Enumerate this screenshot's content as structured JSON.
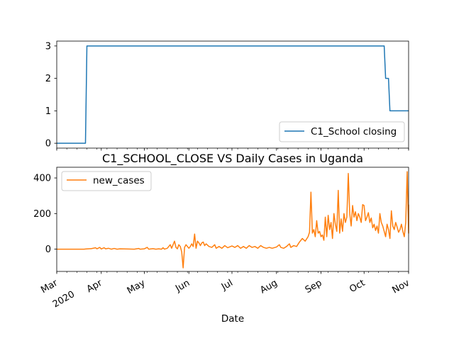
{
  "chart_data": [
    {
      "type": "line",
      "title": "",
      "xlabel": "",
      "ylabel": "",
      "ylim": [
        -0.15,
        3.15
      ],
      "yticks": [
        0,
        1,
        2,
        3
      ],
      "grid": false,
      "legend_placement": "lower-right",
      "series": [
        {
          "name": "C1_School closing",
          "color": "#1f77b4",
          "points": [
            [
              "2020-03-01",
              0
            ],
            [
              "2020-03-21",
              0
            ],
            [
              "2020-03-22",
              3
            ],
            [
              "2020-10-15",
              3
            ],
            [
              "2020-10-16",
              2
            ],
            [
              "2020-10-18",
              2
            ],
            [
              "2020-10-19",
              1
            ],
            [
              "2020-11-01",
              1
            ]
          ]
        }
      ]
    },
    {
      "type": "line",
      "title": "C1_SCHOOL_CLOSE VS Daily Cases in Uganda",
      "xlabel": "Date",
      "ylabel": "",
      "ylim": [
        -125,
        460
      ],
      "yticks": [
        0,
        200,
        400
      ],
      "grid": false,
      "legend_placement": "upper-left",
      "x_tick_labels": [
        {
          "date": "2020-03-01",
          "label": "Mar",
          "sublabel": "2020"
        },
        {
          "date": "2020-04-01",
          "label": "Apr"
        },
        {
          "date": "2020-05-01",
          "label": "May"
        },
        {
          "date": "2020-06-01",
          "label": "Jun"
        },
        {
          "date": "2020-07-01",
          "label": "Jul"
        },
        {
          "date": "2020-08-01",
          "label": "Aug"
        },
        {
          "date": "2020-09-01",
          "label": "Sep"
        },
        {
          "date": "2020-10-01",
          "label": "Oct"
        },
        {
          "date": "2020-11-01",
          "label": "Nov"
        }
      ],
      "series": [
        {
          "name": "new_cases",
          "color": "#ff7f0e",
          "points": [
            [
              "2020-03-01",
              0
            ],
            [
              "2020-03-20",
              0
            ],
            [
              "2020-03-21",
              1
            ],
            [
              "2020-03-25",
              3
            ],
            [
              "2020-03-28",
              8
            ],
            [
              "2020-03-29",
              2
            ],
            [
              "2020-03-31",
              10
            ],
            [
              "2020-04-01",
              1
            ],
            [
              "2020-04-03",
              8
            ],
            [
              "2020-04-04",
              2
            ],
            [
              "2020-04-06",
              5
            ],
            [
              "2020-04-08",
              0
            ],
            [
              "2020-04-10",
              4
            ],
            [
              "2020-04-12",
              0
            ],
            [
              "2020-04-14",
              2
            ],
            [
              "2020-04-20",
              1
            ],
            [
              "2020-04-24",
              0
            ],
            [
              "2020-04-27",
              4
            ],
            [
              "2020-04-28",
              0
            ],
            [
              "2020-05-01",
              2
            ],
            [
              "2020-05-03",
              10
            ],
            [
              "2020-05-04",
              0
            ],
            [
              "2020-05-07",
              3
            ],
            [
              "2020-05-09",
              0
            ],
            [
              "2020-05-11",
              2
            ],
            [
              "2020-05-13",
              0
            ],
            [
              "2020-05-14",
              8
            ],
            [
              "2020-05-15",
              0
            ],
            [
              "2020-05-17",
              5
            ],
            [
              "2020-05-19",
              25
            ],
            [
              "2020-05-20",
              5
            ],
            [
              "2020-05-22",
              45
            ],
            [
              "2020-05-23",
              10
            ],
            [
              "2020-05-24",
              2
            ],
            [
              "2020-05-25",
              25
            ],
            [
              "2020-05-26",
              15
            ],
            [
              "2020-05-27",
              -15
            ],
            [
              "2020-05-28",
              -105
            ],
            [
              "2020-05-29",
              10
            ],
            [
              "2020-05-30",
              25
            ],
            [
              "2020-06-01",
              5
            ],
            [
              "2020-06-02",
              15
            ],
            [
              "2020-06-03",
              30
            ],
            [
              "2020-06-04",
              15
            ],
            [
              "2020-06-05",
              85
            ],
            [
              "2020-06-06",
              5
            ],
            [
              "2020-06-07",
              45
            ],
            [
              "2020-06-08",
              35
            ],
            [
              "2020-06-09",
              20
            ],
            [
              "2020-06-10",
              35
            ],
            [
              "2020-06-11",
              40
            ],
            [
              "2020-06-12",
              20
            ],
            [
              "2020-06-13",
              30
            ],
            [
              "2020-06-15",
              15
            ],
            [
              "2020-06-17",
              10
            ],
            [
              "2020-06-19",
              25
            ],
            [
              "2020-06-20",
              5
            ],
            [
              "2020-06-22",
              15
            ],
            [
              "2020-06-24",
              5
            ],
            [
              "2020-06-26",
              20
            ],
            [
              "2020-06-28",
              8
            ],
            [
              "2020-07-01",
              18
            ],
            [
              "2020-07-03",
              10
            ],
            [
              "2020-07-05",
              20
            ],
            [
              "2020-07-07",
              5
            ],
            [
              "2020-07-09",
              15
            ],
            [
              "2020-07-11",
              5
            ],
            [
              "2020-07-13",
              20
            ],
            [
              "2020-07-15",
              10
            ],
            [
              "2020-07-17",
              15
            ],
            [
              "2020-07-19",
              5
            ],
            [
              "2020-07-21",
              20
            ],
            [
              "2020-07-23",
              10
            ],
            [
              "2020-07-25",
              5
            ],
            [
              "2020-07-27",
              10
            ],
            [
              "2020-07-29",
              5
            ],
            [
              "2020-08-01",
              12
            ],
            [
              "2020-08-03",
              25
            ],
            [
              "2020-08-04",
              10
            ],
            [
              "2020-08-06",
              5
            ],
            [
              "2020-08-08",
              15
            ],
            [
              "2020-08-10",
              30
            ],
            [
              "2020-08-11",
              10
            ],
            [
              "2020-08-13",
              20
            ],
            [
              "2020-08-15",
              15
            ],
            [
              "2020-08-17",
              40
            ],
            [
              "2020-08-19",
              60
            ],
            [
              "2020-08-21",
              45
            ],
            [
              "2020-08-23",
              70
            ],
            [
              "2020-08-24",
              95
            ],
            [
              "2020-08-25",
              320
            ],
            [
              "2020-08-26",
              90
            ],
            [
              "2020-08-27",
              110
            ],
            [
              "2020-08-28",
              70
            ],
            [
              "2020-08-29",
              160
            ],
            [
              "2020-08-30",
              90
            ],
            [
              "2020-08-31",
              100
            ],
            [
              "2020-09-01",
              70
            ],
            [
              "2020-09-02",
              80
            ],
            [
              "2020-09-03",
              50
            ],
            [
              "2020-09-04",
              180
            ],
            [
              "2020-09-05",
              70
            ],
            [
              "2020-09-06",
              190
            ],
            [
              "2020-09-07",
              110
            ],
            [
              "2020-09-08",
              150
            ],
            [
              "2020-09-09",
              60
            ],
            [
              "2020-09-10",
              200
            ],
            [
              "2020-09-11",
              140
            ],
            [
              "2020-09-12",
              100
            ],
            [
              "2020-09-13",
              330
            ],
            [
              "2020-09-14",
              90
            ],
            [
              "2020-09-15",
              170
            ],
            [
              "2020-09-16",
              100
            ],
            [
              "2020-09-17",
              200
            ],
            [
              "2020-09-18",
              150
            ],
            [
              "2020-09-19",
              180
            ],
            [
              "2020-09-20",
              425
            ],
            [
              "2020-09-21",
              200
            ],
            [
              "2020-09-22",
              130
            ],
            [
              "2020-09-23",
              245
            ],
            [
              "2020-09-24",
              180
            ],
            [
              "2020-09-25",
              210
            ],
            [
              "2020-09-26",
              160
            ],
            [
              "2020-09-27",
              200
            ],
            [
              "2020-09-28",
              180
            ],
            [
              "2020-09-29",
              150
            ],
            [
              "2020-09-30",
              250
            ],
            [
              "2020-10-01",
              245
            ],
            [
              "2020-10-02",
              160
            ],
            [
              "2020-10-03",
              180
            ],
            [
              "2020-10-04",
              205
            ],
            [
              "2020-10-05",
              150
            ],
            [
              "2020-10-06",
              175
            ],
            [
              "2020-10-07",
              120
            ],
            [
              "2020-10-08",
              140
            ],
            [
              "2020-10-09",
              105
            ],
            [
              "2020-10-10",
              130
            ],
            [
              "2020-10-11",
              90
            ],
            [
              "2020-10-12",
              200
            ],
            [
              "2020-10-13",
              150
            ],
            [
              "2020-10-14",
              130
            ],
            [
              "2020-10-15",
              100
            ],
            [
              "2020-10-16",
              70
            ],
            [
              "2020-10-17",
              140
            ],
            [
              "2020-10-18",
              110
            ],
            [
              "2020-10-19",
              60
            ],
            [
              "2020-10-20",
              215
            ],
            [
              "2020-10-21",
              130
            ],
            [
              "2020-10-22",
              110
            ],
            [
              "2020-10-23",
              150
            ],
            [
              "2020-10-24",
              125
            ],
            [
              "2020-10-25",
              95
            ],
            [
              "2020-10-26",
              110
            ],
            [
              "2020-10-27",
              140
            ],
            [
              "2020-10-28",
              100
            ],
            [
              "2020-10-29",
              70
            ],
            [
              "2020-10-30",
              150
            ],
            [
              "2020-10-31",
              435
            ],
            [
              "2020-11-01",
              90
            ],
            [
              "2020-11-01",
              250
            ]
          ]
        }
      ]
    }
  ]
}
